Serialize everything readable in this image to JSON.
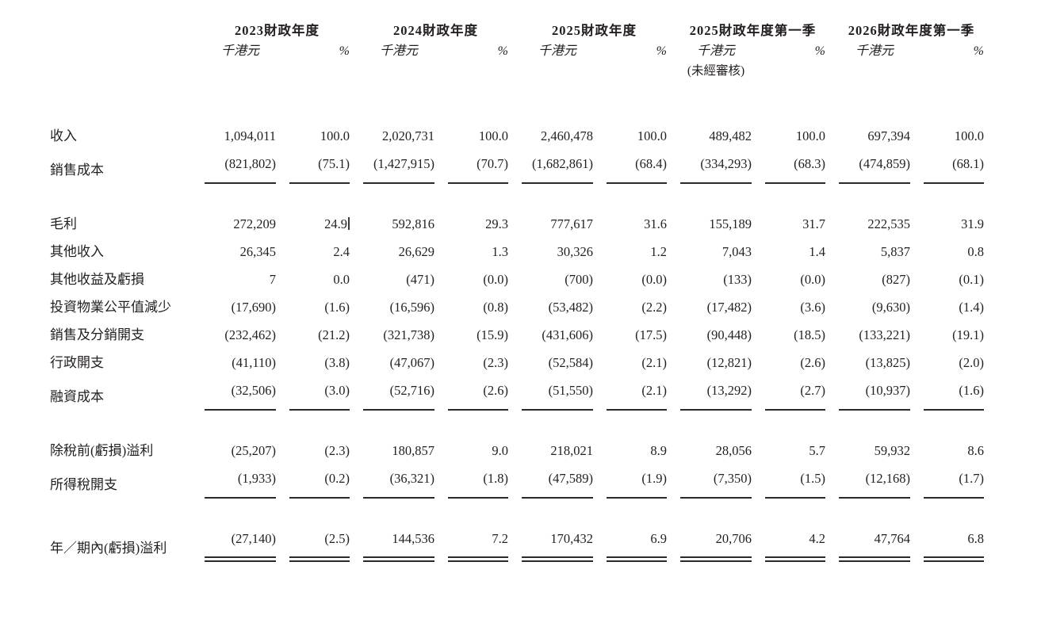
{
  "page": {
    "background": "#ffffff",
    "text_color": "#231f20",
    "rule_color": "#2a2a2a"
  },
  "table": {
    "column_groups": [
      {
        "title": "2023財政年度",
        "unit": "千港元",
        "pct": "%",
        "note": ""
      },
      {
        "title": "2024財政年度",
        "unit": "千港元",
        "pct": "%",
        "note": ""
      },
      {
        "title": "2025財政年度",
        "unit": "千港元",
        "pct": "%",
        "note": ""
      },
      {
        "title": "2025財政年度第一季",
        "unit": "千港元",
        "pct": "%",
        "note": "(未經審核)"
      },
      {
        "title": "2026財政年度第一季",
        "unit": "千港元",
        "pct": "%",
        "note": ""
      }
    ],
    "rows": [
      {
        "label": "收入",
        "cells": [
          "1,094,011",
          "100.0",
          "2,020,731",
          "100.0",
          "2,460,478",
          "100.0",
          "489,482",
          "100.0",
          "697,394",
          "100.0"
        ],
        "underline": "none",
        "spacer_before": false
      },
      {
        "label": "銷售成本",
        "cells": [
          "(821,802)",
          "(75.1)",
          "(1,427,915)",
          "(70.7)",
          "(1,682,861)",
          "(68.4)",
          "(334,293)",
          "(68.3)",
          "(474,859)",
          "(68.1)"
        ],
        "underline": "single",
        "spacer_before": false
      },
      {
        "label": "毛利",
        "cells": [
          "272,209",
          "24.9",
          "592,816",
          "29.3",
          "777,617",
          "31.6",
          "155,189",
          "31.7",
          "222,535",
          "31.9"
        ],
        "underline": "none",
        "spacer_before": true,
        "caret_after_cell": 1
      },
      {
        "label": "其他收入",
        "cells": [
          "26,345",
          "2.4",
          "26,629",
          "1.3",
          "30,326",
          "1.2",
          "7,043",
          "1.4",
          "5,837",
          "0.8"
        ],
        "underline": "none",
        "spacer_before": false
      },
      {
        "label": "其他收益及虧損",
        "cells": [
          "7",
          "0.0",
          "(471)",
          "(0.0)",
          "(700)",
          "(0.0)",
          "(133)",
          "(0.0)",
          "(827)",
          "(0.1)"
        ],
        "underline": "none",
        "spacer_before": false
      },
      {
        "label": "投資物業公平值減少",
        "cells": [
          "(17,690)",
          "(1.6)",
          "(16,596)",
          "(0.8)",
          "(53,482)",
          "(2.2)",
          "(17,482)",
          "(3.6)",
          "(9,630)",
          "(1.4)"
        ],
        "underline": "none",
        "spacer_before": false
      },
      {
        "label": "銷售及分銷開支",
        "cells": [
          "(232,462)",
          "(21.2)",
          "(321,738)",
          "(15.9)",
          "(431,606)",
          "(17.5)",
          "(90,448)",
          "(18.5)",
          "(133,221)",
          "(19.1)"
        ],
        "underline": "none",
        "spacer_before": false
      },
      {
        "label": "行政開支",
        "cells": [
          "(41,110)",
          "(3.8)",
          "(47,067)",
          "(2.3)",
          "(52,584)",
          "(2.1)",
          "(12,821)",
          "(2.6)",
          "(13,825)",
          "(2.0)"
        ],
        "underline": "none",
        "spacer_before": false
      },
      {
        "label": "融資成本",
        "cells": [
          "(32,506)",
          "(3.0)",
          "(52,716)",
          "(2.6)",
          "(51,550)",
          "(2.1)",
          "(13,292)",
          "(2.7)",
          "(10,937)",
          "(1.6)"
        ],
        "underline": "single",
        "spacer_before": false
      },
      {
        "label": "除稅前(虧損)溢利",
        "cells": [
          "(25,207)",
          "(2.3)",
          "180,857",
          "9.0",
          "218,021",
          "8.9",
          "28,056",
          "5.7",
          "59,932",
          "8.6"
        ],
        "underline": "none",
        "spacer_before": true
      },
      {
        "label": "所得稅開支",
        "cells": [
          "(1,933)",
          "(0.2)",
          "(36,321)",
          "(1.8)",
          "(47,589)",
          "(1.9)",
          "(7,350)",
          "(1.5)",
          "(12,168)",
          "(1.7)"
        ],
        "underline": "single",
        "spacer_before": false
      },
      {
        "label": "年／期內(虧損)溢利",
        "cells": [
          "(27,140)",
          "(2.5)",
          "144,536",
          "7.2",
          "170,432",
          "6.9",
          "20,706",
          "4.2",
          "47,764",
          "6.8"
        ],
        "underline": "double",
        "spacer_before": true
      }
    ]
  }
}
